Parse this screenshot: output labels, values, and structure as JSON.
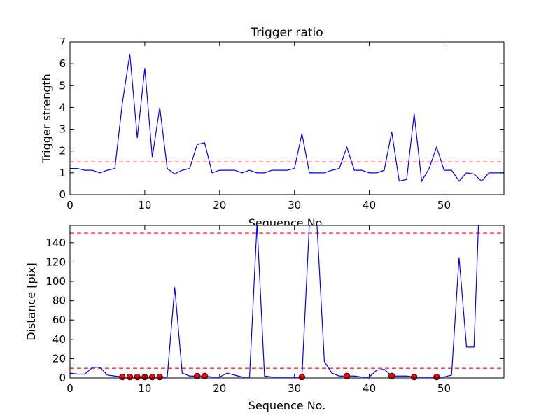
{
  "chart_data": [
    {
      "type": "line",
      "title": "Trigger ratio",
      "xlabel": "Sequence No.",
      "ylabel": "Trigger strength",
      "xlim": [
        0,
        58
      ],
      "ylim": [
        0,
        7
      ],
      "xticks": [
        0,
        10,
        20,
        30,
        40,
        50
      ],
      "yticks": [
        0,
        1,
        2,
        3,
        4,
        5,
        6,
        7
      ],
      "grid": false,
      "series": [
        {
          "color": "#0000ff",
          "style": "solid",
          "x": [
            0,
            1,
            2,
            3,
            4,
            5,
            6,
            7,
            8,
            9,
            10,
            11,
            12,
            13,
            14,
            15,
            16,
            17,
            18,
            19,
            20,
            21,
            22,
            23,
            24,
            25,
            26,
            27,
            28,
            29,
            30,
            31,
            32,
            33,
            34,
            35,
            36,
            37,
            38,
            39,
            40,
            41,
            42,
            43,
            44,
            45,
            46,
            47,
            48,
            49,
            50,
            51,
            52,
            53,
            54,
            55,
            56,
            57,
            58
          ],
          "values": [
            1.2,
            1.2,
            1.12,
            1.12,
            1.0,
            1.12,
            1.2,
            4.2,
            6.45,
            2.6,
            5.8,
            1.72,
            4.0,
            1.2,
            0.95,
            1.12,
            1.2,
            2.3,
            2.38,
            1.0,
            1.12,
            1.12,
            1.12,
            1.0,
            1.12,
            1.0,
            1.0,
            1.12,
            1.12,
            1.12,
            1.2,
            2.8,
            1.0,
            1.0,
            1.0,
            1.12,
            1.2,
            2.18,
            1.12,
            1.12,
            1.0,
            1.0,
            1.12,
            2.88,
            0.62,
            0.7,
            3.72,
            0.62,
            1.2,
            2.18,
            1.12,
            1.12,
            0.62,
            1.0,
            0.95,
            0.62,
            1.0,
            1.0,
            1.0
          ]
        }
      ],
      "hlines": [
        {
          "y": 1.5,
          "color": "#ff0000",
          "style": "dashed"
        }
      ]
    },
    {
      "type": "line",
      "title": "",
      "xlabel": "Sequence No.",
      "ylabel": "Distance [pix]",
      "xlim": [
        0,
        58
      ],
      "ylim": [
        0,
        158
      ],
      "xticks": [
        0,
        10,
        20,
        30,
        40,
        50
      ],
      "yticks": [
        0,
        20,
        40,
        60,
        80,
        100,
        120,
        140
      ],
      "grid": false,
      "series": [
        {
          "color": "#0000ff",
          "style": "solid",
          "x": [
            0,
            1,
            2,
            3,
            4,
            5,
            6,
            7,
            8,
            9,
            10,
            11,
            12,
            13,
            14,
            15,
            16,
            17,
            18,
            19,
            20,
            21,
            22,
            23,
            24,
            25,
            26,
            27,
            28,
            29,
            30,
            31,
            32,
            33,
            34,
            35,
            36,
            37,
            38,
            39,
            40,
            41,
            42,
            43,
            44,
            45,
            46,
            47,
            48,
            49,
            50,
            51,
            52,
            53,
            54,
            54.6
          ],
          "values": [
            5,
            4,
            4,
            11,
            11,
            3,
            2,
            1,
            1,
            1,
            1,
            1,
            1,
            1,
            94,
            5,
            2,
            2,
            2,
            1,
            1,
            5,
            3,
            1,
            1,
            160,
            2,
            1,
            1,
            1,
            1,
            1,
            160,
            160,
            17,
            5,
            2,
            2,
            2,
            1,
            1,
            8,
            9,
            2,
            2,
            2,
            1,
            1,
            1,
            1,
            1,
            3,
            125,
            32,
            32,
            160
          ]
        }
      ],
      "markers": {
        "color": "#ff0000",
        "x": [
          7,
          8,
          9,
          10,
          11,
          12,
          17,
          18,
          31,
          37,
          43,
          46,
          49
        ],
        "values": [
          1,
          1,
          1,
          1,
          1,
          1,
          2,
          2,
          1,
          2,
          2,
          1,
          1
        ]
      },
      "hlines": [
        {
          "y": 150,
          "color": "#ff0000",
          "style": "dashed"
        },
        {
          "y": 10,
          "color": "#ff0000",
          "style": "dashed"
        }
      ]
    }
  ]
}
